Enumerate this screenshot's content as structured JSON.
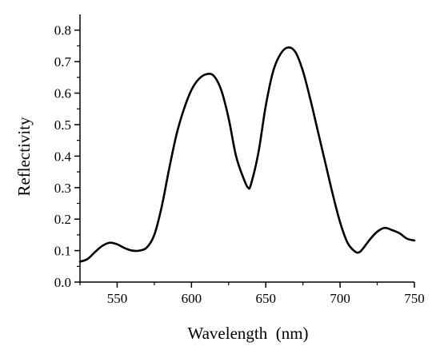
{
  "chart_data": {
    "type": "line",
    "title": "",
    "xlabel": "Wavelength  (nm)",
    "ylabel": "Reflectivity",
    "xlim": [
      525,
      750
    ],
    "ylim": [
      0.0,
      0.85
    ],
    "x_ticks": [
      550,
      600,
      650,
      700,
      750
    ],
    "x_tick_labels": [
      "550",
      "600",
      "650",
      "700",
      "750"
    ],
    "y_ticks": [
      0.0,
      0.1,
      0.2,
      0.3,
      0.4,
      0.5,
      0.6,
      0.7,
      0.8
    ],
    "y_tick_labels": [
      "0.0",
      "0.1",
      "0.2",
      "0.3",
      "0.4",
      "0.5",
      "0.6",
      "0.7",
      "0.8"
    ],
    "grid": false,
    "legend": "none",
    "series": [
      {
        "color": "#000000",
        "x": [
          525,
          530,
          535,
          540,
          545,
          550,
          555,
          560,
          565,
          570,
          575,
          580,
          585,
          590,
          595,
          600,
          605,
          610,
          615,
          620,
          625,
          630,
          635,
          638,
          640,
          645,
          650,
          655,
          660,
          665,
          670,
          675,
          680,
          685,
          690,
          695,
          700,
          705,
          710,
          713,
          716,
          720,
          725,
          730,
          735,
          740,
          745,
          750
        ],
        "y": [
          0.065,
          0.073,
          0.095,
          0.115,
          0.125,
          0.12,
          0.108,
          0.1,
          0.1,
          0.11,
          0.15,
          0.24,
          0.36,
          0.47,
          0.55,
          0.61,
          0.645,
          0.66,
          0.655,
          0.61,
          0.52,
          0.4,
          0.33,
          0.3,
          0.31,
          0.41,
          0.56,
          0.67,
          0.725,
          0.745,
          0.73,
          0.67,
          0.58,
          0.48,
          0.38,
          0.28,
          0.19,
          0.125,
          0.097,
          0.095,
          0.11,
          0.135,
          0.16,
          0.172,
          0.165,
          0.155,
          0.138,
          0.132
        ]
      }
    ]
  }
}
